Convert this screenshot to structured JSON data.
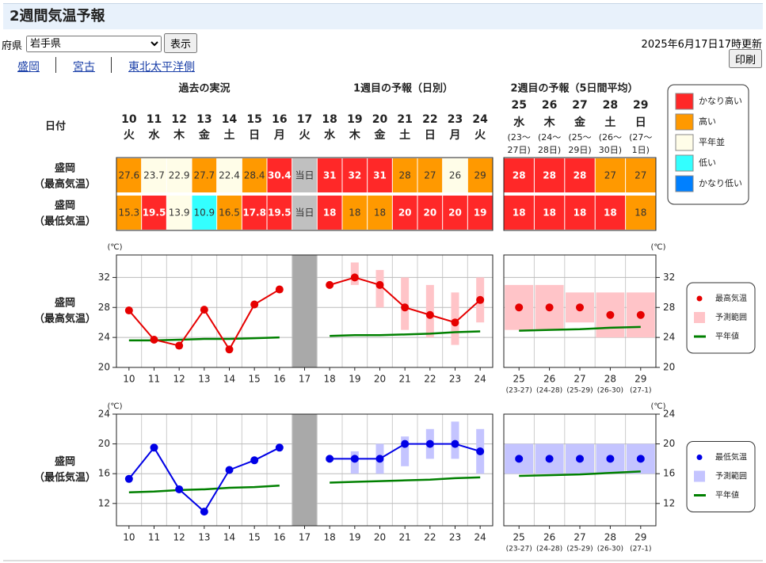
{
  "header": {
    "title": "2週間気温予報"
  },
  "controls": {
    "prefecture_label": "府県",
    "prefecture": "岩手県",
    "show_button": "表示",
    "updated": "2025年6月17日17時更新",
    "print_button": "印刷"
  },
  "links": [
    "盛岡",
    "宮古",
    "東北太平洋側"
  ],
  "table": {
    "header": "日付",
    "sections": [
      "過去の実況",
      "1週目の予報（日別）",
      "2週目の予報（5日間平均）"
    ],
    "days": [
      {
        "day": "10",
        "weekday": "火"
      },
      {
        "day": "11",
        "weekday": "水"
      },
      {
        "day": "12",
        "weekday": "木"
      },
      {
        "day": "13",
        "weekday": "金"
      },
      {
        "day": "14",
        "weekday": "土"
      },
      {
        "day": "15",
        "weekday": "日"
      },
      {
        "day": "16",
        "weekday": "月"
      },
      {
        "day": "17",
        "weekday": "火"
      },
      {
        "day": "18",
        "weekday": "水"
      },
      {
        "day": "19",
        "weekday": "木"
      },
      {
        "day": "20",
        "weekday": "金"
      },
      {
        "day": "21",
        "weekday": "土"
      },
      {
        "day": "22",
        "weekday": "日"
      },
      {
        "day": "23",
        "weekday": "月"
      },
      {
        "day": "24",
        "weekday": "火"
      }
    ],
    "week2_days": [
      {
        "day": "25",
        "weekday": "水",
        "range": [
          "(23～",
          "27日)"
        ]
      },
      {
        "day": "26",
        "weekday": "木",
        "range": [
          "(24～",
          "28日)"
        ]
      },
      {
        "day": "27",
        "weekday": "金",
        "range": [
          "(25～",
          "29日)"
        ]
      },
      {
        "day": "28",
        "weekday": "土",
        "range": [
          "(26～",
          "30日)"
        ]
      },
      {
        "day": "29",
        "weekday": "日",
        "range": [
          "(27～",
          "1日)"
        ]
      }
    ],
    "rows": [
      {
        "label": [
          "盛岡",
          "（最高気温）"
        ],
        "cells": [
          {
            "value": 27.6,
            "color": "#ff9900"
          },
          {
            "value": 23.7,
            "color": "#fffde8"
          },
          {
            "value": 22.9,
            "color": "#fffde8"
          },
          {
            "value": 27.7,
            "color": "#ff9900"
          },
          {
            "value": 22.4,
            "color": "#fffde8"
          },
          {
            "value": 28.4,
            "color": "#ff9900"
          },
          {
            "value": 30.4,
            "color": "#ff2828"
          },
          {
            "value": "当日",
            "color": "#c0c0c0"
          },
          {
            "value": 31,
            "color": "#ff2828"
          },
          {
            "value": 32,
            "color": "#ff2828"
          },
          {
            "value": 31,
            "color": "#ff2828"
          },
          {
            "value": 28,
            "color": "#ff9900"
          },
          {
            "value": 27,
            "color": "#ff9900"
          },
          {
            "value": 26,
            "color": "#fffde8"
          },
          {
            "value": 29,
            "color": "#ff9900"
          }
        ],
        "week2_cells": [
          {
            "value": 28,
            "color": "#ff2828"
          },
          {
            "value": 28,
            "color": "#ff2828"
          },
          {
            "value": 28,
            "color": "#ff2828"
          },
          {
            "value": 27,
            "color": "#ff9900"
          },
          {
            "value": 27,
            "color": "#ff9900"
          }
        ]
      },
      {
        "label": [
          "盛岡",
          "（最低気温）"
        ],
        "cells": [
          {
            "value": 15.3,
            "color": "#ff9900"
          },
          {
            "value": 19.5,
            "color": "#ff2828"
          },
          {
            "value": 13.9,
            "color": "#fffde8"
          },
          {
            "value": 10.9,
            "color": "#33ffff"
          },
          {
            "value": 16.5,
            "color": "#ff9900"
          },
          {
            "value": 17.8,
            "color": "#ff2828"
          },
          {
            "value": 19.5,
            "color": "#ff2828"
          },
          {
            "value": "当日",
            "color": "#c0c0c0"
          },
          {
            "value": 18,
            "color": "#ff2828"
          },
          {
            "value": 18,
            "color": "#ff9900"
          },
          {
            "value": 18,
            "color": "#ff9900"
          },
          {
            "value": 20,
            "color": "#ff2828"
          },
          {
            "value": 20,
            "color": "#ff2828"
          },
          {
            "value": 20,
            "color": "#ff2828"
          },
          {
            "value": 19,
            "color": "#ff2828"
          }
        ],
        "week2_cells": [
          {
            "value": 18,
            "color": "#ff2828"
          },
          {
            "value": 18,
            "color": "#ff2828"
          },
          {
            "value": 18,
            "color": "#ff2828"
          },
          {
            "value": 18,
            "color": "#ff2828"
          },
          {
            "value": 18,
            "color": "#ff9900"
          }
        ]
      }
    ]
  },
  "legend": [
    {
      "label": "かなり高い",
      "color": "#ff2828"
    },
    {
      "label": "高い",
      "color": "#ff9900"
    },
    {
      "label": "平年並",
      "color": "#fffde8"
    },
    {
      "label": "低い",
      "color": "#33ffff"
    },
    {
      "label": "かなり低い",
      "color": "#0080ff"
    }
  ],
  "chart_data": [
    {
      "type": "line",
      "label": [
        "盛岡",
        "（最高気温）"
      ],
      "unit": "(℃)",
      "ylim": [
        20,
        35
      ],
      "yticks": [
        20,
        24,
        28,
        32
      ],
      "grid": true,
      "today": 17,
      "xticks": [
        10,
        11,
        12,
        13,
        14,
        15,
        16,
        17,
        18,
        19,
        20,
        21,
        22,
        23,
        24
      ],
      "week2_x": [
        25,
        26,
        27,
        28,
        29
      ],
      "week2_sublabels": [
        "(23-27)",
        "(24-28)",
        "(25-29)",
        "(26-30)",
        "(27-1)"
      ],
      "series": [
        {
          "name": "最高気温",
          "color": "#e60000",
          "marker": true,
          "x": [
            10,
            11,
            12,
            13,
            14,
            15,
            16,
            17,
            18,
            19,
            20,
            21,
            22,
            23,
            24
          ],
          "values": [
            27.6,
            23.7,
            22.9,
            27.7,
            22.4,
            28.4,
            30.4,
            null,
            31,
            32,
            31,
            28,
            27,
            26,
            29
          ],
          "week2_values": [
            28,
            28,
            28,
            27,
            27
          ]
        },
        {
          "name": "予測範囲",
          "color": "#ffc4c8",
          "x": [
            19,
            20,
            21,
            22,
            23,
            24
          ],
          "low": [
            31,
            28,
            25,
            24,
            23,
            26
          ],
          "high": [
            34,
            33,
            32,
            31,
            30,
            32
          ],
          "week2_low": [
            25,
            25,
            26,
            24,
            24
          ],
          "week2_high": [
            31,
            31,
            30,
            30,
            30
          ]
        },
        {
          "name": "平年値",
          "color": "#008000",
          "x": [
            10,
            11,
            12,
            13,
            14,
            15,
            16,
            17,
            18,
            19,
            20,
            21,
            22,
            23,
            24
          ],
          "values": [
            23.6,
            23.6,
            23.7,
            23.8,
            23.8,
            23.9,
            24.0,
            null,
            24.2,
            24.3,
            24.3,
            24.4,
            24.5,
            24.7,
            24.8
          ],
          "week2_values": [
            24.9,
            25.0,
            25.1,
            25.3,
            25.4
          ]
        }
      ]
    },
    {
      "type": "line",
      "label": [
        "盛岡",
        "（最低気温）"
      ],
      "unit": "(℃)",
      "ylim": [
        9,
        24
      ],
      "yticks": [
        12,
        16,
        20,
        24
      ],
      "grid": true,
      "today": 17,
      "xticks": [
        10,
        11,
        12,
        13,
        14,
        15,
        16,
        17,
        18,
        19,
        20,
        21,
        22,
        23,
        24
      ],
      "week2_x": [
        25,
        26,
        27,
        28,
        29
      ],
      "week2_sublabels": [
        "(23-27)",
        "(24-28)",
        "(25-29)",
        "(26-30)",
        "(27-1)"
      ],
      "series": [
        {
          "name": "最低気温",
          "color": "#0000e6",
          "marker": true,
          "x": [
            10,
            11,
            12,
            13,
            14,
            15,
            16,
            17,
            18,
            19,
            20,
            21,
            22,
            23,
            24
          ],
          "values": [
            15.3,
            19.5,
            13.9,
            10.9,
            16.5,
            17.8,
            19.5,
            null,
            18,
            18,
            18,
            20,
            20,
            20,
            19
          ],
          "week2_values": [
            18,
            18,
            18,
            18,
            18
          ]
        },
        {
          "name": "予測範囲",
          "color": "#c4c4ff",
          "x": [
            19,
            20,
            21,
            22,
            23,
            24
          ],
          "low": [
            16,
            16,
            17,
            18,
            18,
            16
          ],
          "high": [
            19,
            20,
            21,
            22,
            23,
            22
          ],
          "week2_low": [
            16,
            16,
            16,
            16,
            16
          ],
          "week2_high": [
            20,
            20,
            20,
            20,
            20
          ]
        },
        {
          "name": "平年値",
          "color": "#008000",
          "x": [
            10,
            11,
            12,
            13,
            14,
            15,
            16,
            17,
            18,
            19,
            20,
            21,
            22,
            23,
            24
          ],
          "values": [
            13.5,
            13.6,
            13.8,
            13.9,
            14.1,
            14.2,
            14.4,
            null,
            14.8,
            14.9,
            15.0,
            15.1,
            15.2,
            15.4,
            15.5
          ],
          "week2_values": [
            15.7,
            15.8,
            15.9,
            16.1,
            16.3
          ]
        }
      ]
    }
  ]
}
